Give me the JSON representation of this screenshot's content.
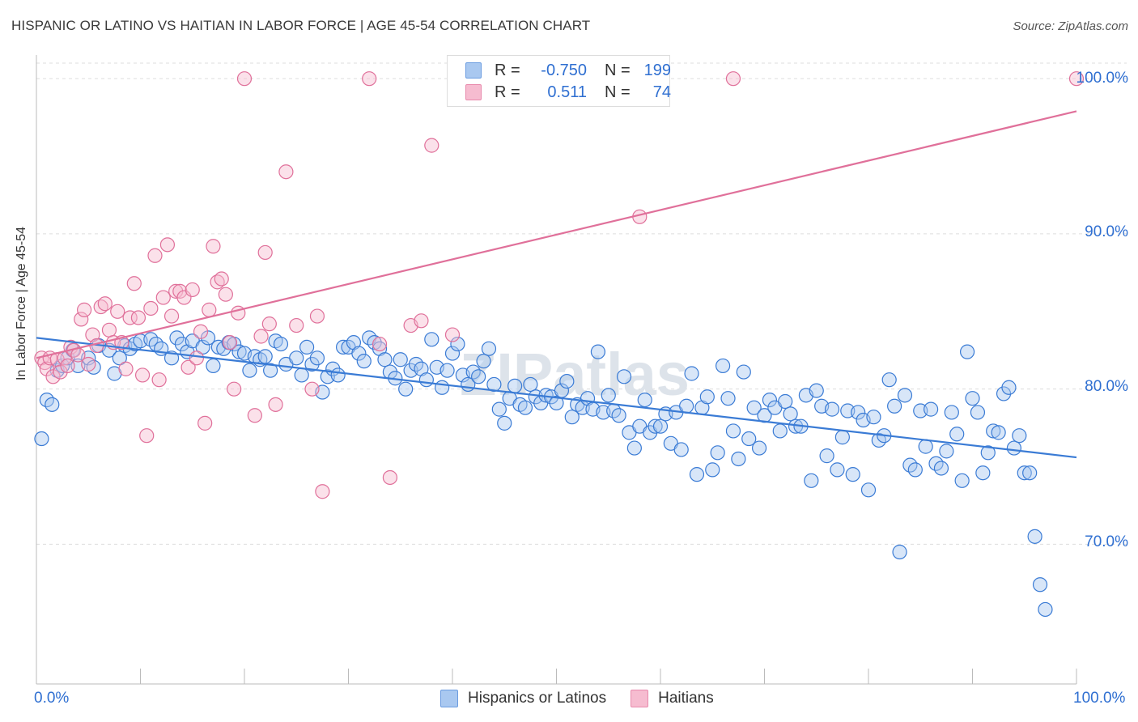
{
  "title": "HISPANIC OR LATINO VS HAITIAN IN LABOR FORCE | AGE 45-54 CORRELATION CHART",
  "source": "Source: ZipAtlas.com",
  "watermark": "ZIPatlas",
  "colors": {
    "blue": "#3a7bd5",
    "blue_fill": "#a9c8f0",
    "pink": "#e0709a",
    "pink_fill": "#f6bcd0",
    "axis_text": "#2f6fd1",
    "grid": "#dddddd"
  },
  "legend": {
    "rows": [
      {
        "r_label": "R =",
        "r_value": "-0.750",
        "n_label": "N =",
        "n_value": "199"
      },
      {
        "r_label": "R =",
        "r_value": "0.511",
        "n_label": "N =",
        "n_value": "74"
      }
    ]
  },
  "bottom_legend": {
    "series1": "Hispanics or Latinos",
    "series2": "Haitians"
  },
  "chart_data": {
    "type": "scatter",
    "ylabel": "In Labor Force | Age 45-54",
    "xlabel": "",
    "xlim": [
      0,
      100
    ],
    "ylim": [
      61,
      101
    ],
    "x_tick_labels": [
      "0.0%",
      "100.0%"
    ],
    "y_ticks": [
      70,
      80,
      90,
      100
    ],
    "y_tick_labels": [
      "70.0%",
      "80.0%",
      "90.0%",
      "100.0%"
    ],
    "grid": true,
    "legend_position": "top-center",
    "series": [
      {
        "name": "Hispanics or Latinos",
        "trend": {
          "x": [
            0,
            100
          ],
          "y": [
            83.3,
            75.6
          ]
        },
        "points": [
          [
            0.5,
            76.8
          ],
          [
            1.0,
            79.3
          ],
          [
            1.5,
            79.0
          ],
          [
            2.0,
            81.2
          ],
          [
            2.5,
            81.5
          ],
          [
            3.0,
            82.0
          ],
          [
            3.5,
            82.5
          ],
          [
            4.0,
            81.5
          ],
          [
            5.0,
            82.0
          ],
          [
            5.5,
            81.4
          ],
          [
            6.0,
            82.8
          ],
          [
            7.0,
            82.5
          ],
          [
            7.5,
            81.0
          ],
          [
            8.0,
            82.0
          ],
          [
            8.5,
            82.8
          ],
          [
            9.0,
            82.6
          ],
          [
            9.5,
            82.9
          ],
          [
            10.0,
            83.1
          ],
          [
            11.0,
            83.2
          ],
          [
            11.5,
            82.9
          ],
          [
            12.0,
            82.6
          ],
          [
            13.0,
            82.0
          ],
          [
            13.5,
            83.3
          ],
          [
            14.0,
            82.9
          ],
          [
            14.5,
            82.4
          ],
          [
            15.0,
            83.1
          ],
          [
            16.0,
            82.7
          ],
          [
            16.5,
            83.3
          ],
          [
            17.0,
            81.5
          ],
          [
            17.5,
            82.7
          ],
          [
            18.0,
            82.6
          ],
          [
            18.5,
            83.0
          ],
          [
            19.0,
            82.9
          ],
          [
            19.5,
            82.4
          ],
          [
            20.0,
            82.3
          ],
          [
            20.5,
            81.2
          ],
          [
            21.0,
            82.1
          ],
          [
            21.5,
            81.9
          ],
          [
            22.0,
            82.1
          ],
          [
            22.5,
            81.2
          ],
          [
            23.0,
            83.1
          ],
          [
            23.5,
            82.9
          ],
          [
            24.0,
            81.6
          ],
          [
            25.0,
            82.0
          ],
          [
            25.5,
            80.9
          ],
          [
            26.0,
            82.7
          ],
          [
            26.5,
            81.6
          ],
          [
            27.0,
            82.0
          ],
          [
            27.5,
            79.8
          ],
          [
            28.0,
            80.8
          ],
          [
            28.5,
            81.3
          ],
          [
            29.0,
            80.9
          ],
          [
            29.5,
            82.7
          ],
          [
            30.0,
            82.7
          ],
          [
            30.5,
            83.0
          ],
          [
            31.0,
            82.3
          ],
          [
            31.5,
            81.8
          ],
          [
            32.0,
            83.3
          ],
          [
            32.5,
            83.0
          ],
          [
            33.0,
            82.6
          ],
          [
            33.5,
            81.9
          ],
          [
            34.0,
            81.1
          ],
          [
            34.5,
            80.7
          ],
          [
            35.0,
            81.9
          ],
          [
            35.5,
            80.0
          ],
          [
            36.0,
            81.2
          ],
          [
            36.5,
            81.6
          ],
          [
            37.0,
            81.3
          ],
          [
            37.5,
            80.6
          ],
          [
            38.0,
            83.2
          ],
          [
            38.5,
            81.4
          ],
          [
            39.0,
            80.1
          ],
          [
            39.5,
            81.2
          ],
          [
            40.0,
            82.3
          ],
          [
            40.5,
            82.9
          ],
          [
            41.0,
            80.9
          ],
          [
            41.5,
            80.3
          ],
          [
            42.0,
            81.1
          ],
          [
            42.5,
            80.8
          ],
          [
            43.0,
            81.8
          ],
          [
            43.5,
            82.6
          ],
          [
            44.0,
            80.3
          ],
          [
            44.5,
            78.7
          ],
          [
            45.0,
            77.8
          ],
          [
            45.5,
            79.4
          ],
          [
            46.0,
            80.2
          ],
          [
            46.5,
            79.0
          ],
          [
            47.0,
            78.8
          ],
          [
            47.5,
            80.3
          ],
          [
            48.0,
            79.5
          ],
          [
            48.5,
            79.1
          ],
          [
            49.0,
            79.6
          ],
          [
            49.5,
            79.5
          ],
          [
            50.0,
            79.1
          ],
          [
            50.5,
            79.9
          ],
          [
            51.0,
            80.5
          ],
          [
            51.5,
            78.2
          ],
          [
            52.0,
            79.0
          ],
          [
            52.5,
            78.8
          ],
          [
            53.0,
            79.4
          ],
          [
            53.5,
            78.7
          ],
          [
            54.0,
            82.4
          ],
          [
            54.5,
            78.5
          ],
          [
            55.0,
            79.6
          ],
          [
            55.5,
            78.6
          ],
          [
            56.0,
            78.3
          ],
          [
            56.5,
            80.8
          ],
          [
            57.0,
            77.2
          ],
          [
            57.5,
            76.2
          ],
          [
            58.0,
            77.6
          ],
          [
            58.5,
            79.3
          ],
          [
            59.0,
            77.2
          ],
          [
            59.5,
            77.6
          ],
          [
            60.0,
            77.6
          ],
          [
            60.5,
            78.4
          ],
          [
            61.0,
            76.5
          ],
          [
            61.5,
            78.5
          ],
          [
            62.0,
            76.1
          ],
          [
            62.5,
            78.9
          ],
          [
            63.0,
            81.0
          ],
          [
            63.5,
            74.5
          ],
          [
            64.0,
            78.8
          ],
          [
            64.5,
            79.5
          ],
          [
            65.0,
            74.8
          ],
          [
            65.5,
            75.9
          ],
          [
            66.0,
            81.5
          ],
          [
            66.5,
            79.4
          ],
          [
            67.0,
            77.3
          ],
          [
            67.5,
            75.5
          ],
          [
            68.0,
            81.1
          ],
          [
            68.5,
            76.8
          ],
          [
            69.0,
            78.8
          ],
          [
            69.5,
            76.2
          ],
          [
            70.0,
            78.3
          ],
          [
            70.5,
            79.3
          ],
          [
            71.0,
            78.8
          ],
          [
            71.5,
            77.3
          ],
          [
            72.0,
            79.2
          ],
          [
            72.5,
            78.4
          ],
          [
            73.0,
            77.6
          ],
          [
            73.5,
            77.6
          ],
          [
            74.0,
            79.6
          ],
          [
            74.5,
            74.1
          ],
          [
            75.0,
            79.9
          ],
          [
            75.5,
            78.9
          ],
          [
            76.0,
            75.7
          ],
          [
            76.5,
            78.7
          ],
          [
            77.0,
            74.8
          ],
          [
            77.5,
            76.9
          ],
          [
            78.0,
            78.6
          ],
          [
            78.5,
            74.5
          ],
          [
            79.0,
            78.5
          ],
          [
            79.5,
            78.0
          ],
          [
            80.0,
            73.5
          ],
          [
            80.5,
            78.2
          ],
          [
            81.0,
            76.7
          ],
          [
            81.5,
            77.0
          ],
          [
            82.0,
            80.6
          ],
          [
            82.5,
            78.9
          ],
          [
            83.0,
            69.5
          ],
          [
            83.5,
            79.6
          ],
          [
            84.0,
            75.1
          ],
          [
            84.5,
            74.8
          ],
          [
            85.0,
            78.6
          ],
          [
            85.5,
            76.3
          ],
          [
            86.0,
            78.7
          ],
          [
            86.5,
            75.2
          ],
          [
            87.0,
            74.9
          ],
          [
            87.5,
            76.0
          ],
          [
            88.0,
            78.5
          ],
          [
            88.5,
            77.1
          ],
          [
            89.0,
            74.1
          ],
          [
            89.5,
            82.4
          ],
          [
            90.0,
            79.4
          ],
          [
            90.5,
            78.5
          ],
          [
            91.0,
            74.6
          ],
          [
            91.5,
            75.9
          ],
          [
            92.0,
            77.3
          ],
          [
            92.5,
            77.2
          ],
          [
            93.0,
            79.7
          ],
          [
            93.5,
            80.1
          ],
          [
            94.0,
            76.2
          ],
          [
            94.5,
            77.0
          ],
          [
            95.0,
            74.6
          ],
          [
            95.5,
            74.6
          ],
          [
            96.0,
            70.5
          ],
          [
            96.5,
            67.4
          ],
          [
            97.0,
            65.8
          ]
        ]
      },
      {
        "name": "Haitians",
        "trend": {
          "x": [
            0,
            100
          ],
          "y": [
            82.0,
            97.9
          ]
        },
        "points": [
          [
            0.5,
            82.0
          ],
          [
            0.8,
            81.7
          ],
          [
            1.0,
            81.3
          ],
          [
            1.3,
            82.0
          ],
          [
            1.6,
            80.8
          ],
          [
            2.0,
            81.9
          ],
          [
            2.3,
            81.1
          ],
          [
            2.7,
            82.0
          ],
          [
            3.0,
            81.5
          ],
          [
            3.3,
            82.7
          ],
          [
            3.6,
            82.5
          ],
          [
            4.0,
            82.2
          ],
          [
            4.3,
            84.5
          ],
          [
            4.6,
            85.1
          ],
          [
            5.0,
            81.6
          ],
          [
            5.4,
            83.5
          ],
          [
            5.8,
            82.8
          ],
          [
            6.2,
            85.3
          ],
          [
            6.6,
            85.5
          ],
          [
            7.0,
            83.8
          ],
          [
            7.4,
            83.0
          ],
          [
            7.8,
            85.0
          ],
          [
            8.2,
            83.0
          ],
          [
            8.6,
            81.3
          ],
          [
            9.0,
            84.6
          ],
          [
            9.4,
            86.8
          ],
          [
            9.8,
            84.6
          ],
          [
            10.2,
            80.9
          ],
          [
            10.6,
            77.0
          ],
          [
            11.0,
            85.2
          ],
          [
            11.4,
            88.6
          ],
          [
            11.8,
            80.6
          ],
          [
            12.2,
            85.9
          ],
          [
            12.6,
            89.3
          ],
          [
            13.0,
            84.7
          ],
          [
            13.4,
            86.3
          ],
          [
            13.8,
            86.3
          ],
          [
            14.2,
            85.9
          ],
          [
            14.6,
            81.4
          ],
          [
            15.0,
            86.4
          ],
          [
            15.4,
            82.0
          ],
          [
            15.8,
            83.7
          ],
          [
            16.2,
            77.8
          ],
          [
            16.6,
            85.1
          ],
          [
            17.0,
            89.2
          ],
          [
            17.4,
            86.9
          ],
          [
            17.8,
            87.1
          ],
          [
            18.2,
            86.1
          ],
          [
            18.6,
            83.0
          ],
          [
            19.0,
            80.0
          ],
          [
            19.4,
            84.9
          ],
          [
            20.0,
            100.0
          ],
          [
            21.0,
            78.3
          ],
          [
            21.6,
            83.4
          ],
          [
            22.0,
            88.8
          ],
          [
            22.4,
            84.2
          ],
          [
            23.0,
            79.0
          ],
          [
            24.0,
            94.0
          ],
          [
            25.0,
            84.1
          ],
          [
            26.5,
            80.0
          ],
          [
            27.0,
            84.7
          ],
          [
            27.5,
            73.4
          ],
          [
            32.0,
            100.0
          ],
          [
            33.0,
            82.9
          ],
          [
            34.0,
            74.3
          ],
          [
            36.0,
            84.1
          ],
          [
            37.0,
            84.4
          ],
          [
            38.0,
            95.7
          ],
          [
            40.0,
            83.5
          ],
          [
            58.0,
            91.1
          ],
          [
            67.0,
            100.0
          ],
          [
            100.0,
            100.0
          ]
        ]
      }
    ]
  }
}
